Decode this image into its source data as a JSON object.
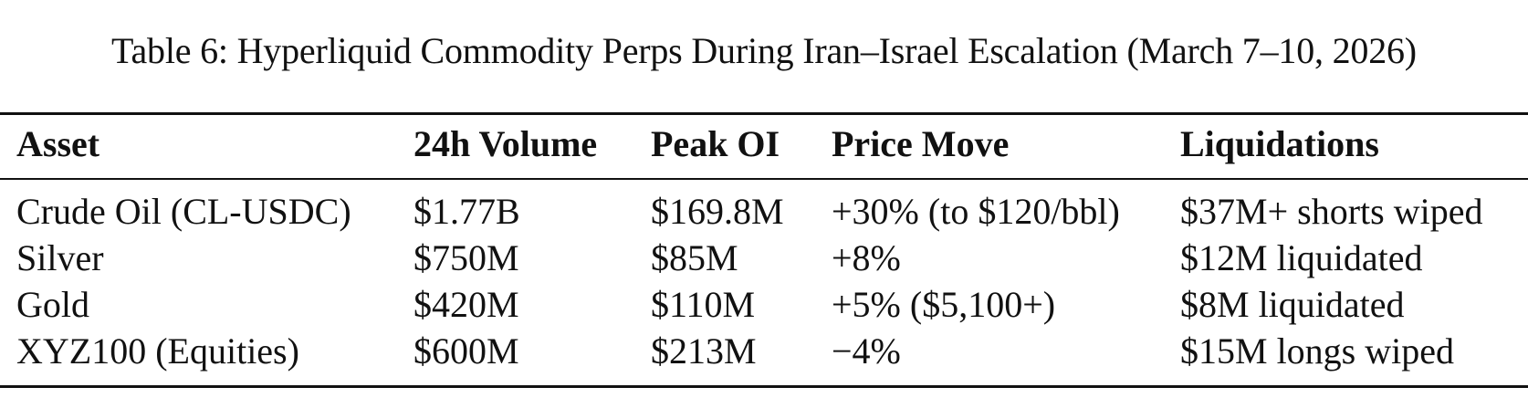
{
  "caption": "Table 6: Hyperliquid Commodity Perps During Iran–Israel Escalation (March 7–10, 2026)",
  "table": {
    "headers": [
      "Asset",
      "24h Volume",
      "Peak OI",
      "Price Move",
      "Liquidations"
    ],
    "rows": [
      [
        "Crude Oil (CL-USDC)",
        "$1.77B",
        "$169.8M",
        "+30% (to $120/bbl)",
        "$37M+ shorts wiped"
      ],
      [
        "Silver",
        "$750M",
        "$85M",
        "+8%",
        "$12M liquidated"
      ],
      [
        "Gold",
        "$420M",
        "$110M",
        "+5% ($5,100+)",
        "$8M liquidated"
      ],
      [
        "XYZ100 (Equities)",
        "$600M",
        "$213M",
        "−4%",
        "$15M longs wiped"
      ]
    ]
  }
}
